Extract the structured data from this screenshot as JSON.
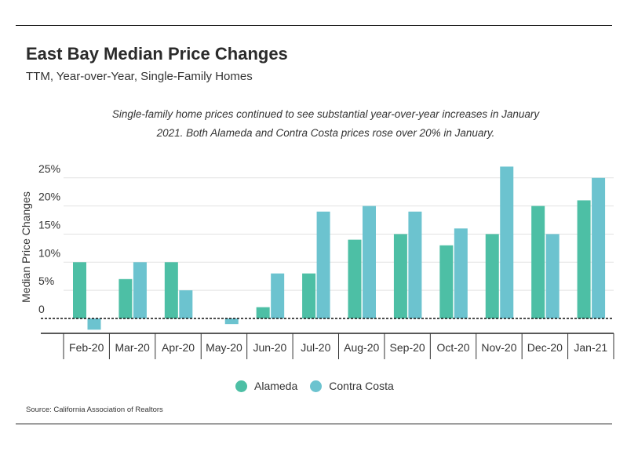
{
  "title": "East Bay Median Price Changes",
  "subtitle": "TTM, Year-over-Year, Single-Family Homes",
  "annotation_line1": "Single-family home prices continued to see substantial year-over-year increases in January",
  "annotation_line2": "2021. Both Alameda and Contra Costa prices rose over 20% in January.",
  "source": "Source:  California Association of Realtors",
  "colors": {
    "alameda": "#4dbfa5",
    "contra_costa": "#6cc3cf"
  },
  "chart_data": {
    "type": "bar",
    "title": "East Bay Median Price Changes",
    "subtitle": "TTM, Year-over-Year, Single-Family Homes",
    "ylabel": "Median Price Changes",
    "xlabel": "",
    "categories": [
      "Feb-20",
      "Mar-20",
      "Apr-20",
      "May-20",
      "Jun-20",
      "Jul-20",
      "Aug-20",
      "Sep-20",
      "Oct-20",
      "Nov-20",
      "Dec-20",
      "Jan-21"
    ],
    "series": [
      {
        "name": "Alameda",
        "values": [
          10,
          7,
          10,
          0,
          2,
          8,
          14,
          15,
          13,
          15,
          20,
          21
        ]
      },
      {
        "name": "Contra Costa",
        "values": [
          -2,
          10,
          5,
          -1,
          8,
          19,
          20,
          19,
          16,
          27,
          15,
          25
        ]
      }
    ],
    "yticks": [
      "0",
      "5%",
      "10%",
      "15%",
      "20%",
      "25%"
    ],
    "ytick_values": [
      0,
      5,
      10,
      15,
      20,
      25
    ],
    "ylim": [
      -3,
      27
    ],
    "grid": true,
    "legend_position": "bottom"
  }
}
